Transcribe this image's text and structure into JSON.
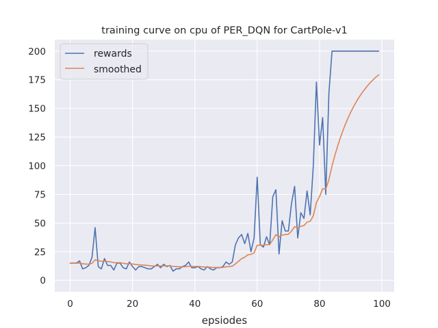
{
  "chart_data": {
    "type": "line",
    "title": "training curve on cpu of PER_DQN for CartPole-v1",
    "xlabel": "epsiodes",
    "ylabel": "",
    "xlim": [
      -4.95,
      103.95
    ],
    "ylim": [
      -10,
      210
    ],
    "xticks": [
      0,
      20,
      40,
      60,
      80,
      100
    ],
    "yticks": [
      0,
      25,
      50,
      75,
      100,
      125,
      150,
      175,
      200
    ],
    "grid": true,
    "legend": "top-left",
    "series": [
      {
        "name": "rewards",
        "color": "#4c72b0",
        "x": [
          0,
          1,
          2,
          3,
          4,
          5,
          6,
          7,
          8,
          9,
          10,
          11,
          12,
          13,
          14,
          15,
          16,
          17,
          18,
          19,
          20,
          21,
          22,
          23,
          24,
          25,
          26,
          27,
          28,
          29,
          30,
          31,
          32,
          33,
          34,
          35,
          36,
          37,
          38,
          39,
          40,
          41,
          42,
          43,
          44,
          45,
          46,
          47,
          48,
          49,
          50,
          51,
          52,
          53,
          54,
          55,
          56,
          57,
          58,
          59,
          60,
          61,
          62,
          63,
          64,
          65,
          66,
          67,
          68,
          69,
          70,
          71,
          72,
          73,
          74,
          75,
          76,
          77,
          78,
          79,
          80,
          81,
          82,
          83,
          84,
          85,
          86,
          87,
          88,
          89,
          90,
          91,
          92,
          93,
          94,
          95,
          96,
          97,
          98,
          99
        ],
        "values": [
          15,
          15,
          15,
          17,
          10,
          11,
          13,
          20,
          46,
          12,
          10,
          19,
          13,
          13,
          9,
          15,
          15,
          11,
          10,
          16,
          12,
          9,
          12,
          12,
          11,
          10,
          10,
          12,
          14,
          11,
          14,
          12,
          13,
          8,
          10,
          10,
          12,
          13,
          16,
          11,
          11,
          12,
          10,
          9,
          12,
          10,
          9,
          11,
          11,
          12,
          16,
          14,
          16,
          31,
          37,
          40,
          32,
          41,
          25,
          37,
          90,
          31,
          29,
          38,
          31,
          73,
          79,
          23,
          52,
          43,
          43,
          67,
          82,
          37,
          59,
          54,
          78,
          57,
          100,
          173,
          118,
          142,
          75,
          163,
          200,
          200,
          200,
          200,
          200,
          200,
          200,
          200,
          200,
          200,
          200,
          200,
          200,
          200,
          200,
          200
        ]
      },
      {
        "name": "smoothed",
        "color": "#dd8452",
        "x": [
          0,
          1,
          2,
          3,
          4,
          5,
          6,
          7,
          8,
          9,
          10,
          11,
          12,
          13,
          14,
          15,
          16,
          17,
          18,
          19,
          20,
          21,
          22,
          23,
          24,
          25,
          26,
          27,
          28,
          29,
          30,
          31,
          32,
          33,
          34,
          35,
          36,
          37,
          38,
          39,
          40,
          41,
          42,
          43,
          44,
          45,
          46,
          47,
          48,
          49,
          50,
          51,
          52,
          53,
          54,
          55,
          56,
          57,
          58,
          59,
          60,
          61,
          62,
          63,
          64,
          65,
          66,
          67,
          68,
          69,
          70,
          71,
          72,
          73,
          74,
          75,
          76,
          77,
          78,
          79,
          80,
          81,
          82,
          83,
          84,
          85,
          86,
          87,
          88,
          89,
          90,
          91,
          92,
          93,
          94,
          95,
          96,
          97,
          98,
          99
        ],
        "values": [
          15,
          15,
          15,
          15,
          14.5,
          14.2,
          14.1,
          14.8,
          17.9,
          17.3,
          16.6,
          16.8,
          16.4,
          16.1,
          15.4,
          15.4,
          15.4,
          14.9,
          14.4,
          14.6,
          14.3,
          13.8,
          13.6,
          13.4,
          13.2,
          12.9,
          12.6,
          12.5,
          12.6,
          12.5,
          12.6,
          12.6,
          12.6,
          12.2,
          12.0,
          11.8,
          11.8,
          11.9,
          12.3,
          12.2,
          12.1,
          12.1,
          11.9,
          11.6,
          11.6,
          11.4,
          11.2,
          11.2,
          11.2,
          11.3,
          11.8,
          12.0,
          12.4,
          14.3,
          16.6,
          18.9,
          20.2,
          22.3,
          22.6,
          24.0,
          30.6,
          30.7,
          30.5,
          31.2,
          31.2,
          35.4,
          39.8,
          38.1,
          39.5,
          39.9,
          40.2,
          42.9,
          46.8,
          45.8,
          47.1,
          47.8,
          50.8,
          51.4,
          56.3,
          68.0,
          73.0,
          79.9,
          79.4,
          87.8,
          99.8,
          109.8,
          118.8,
          126.9,
          134.2,
          140.8,
          146.7,
          152.0,
          156.8,
          161.1,
          165.0,
          168.5,
          171.7,
          174.5,
          177.1,
          179.4
        ]
      }
    ]
  }
}
